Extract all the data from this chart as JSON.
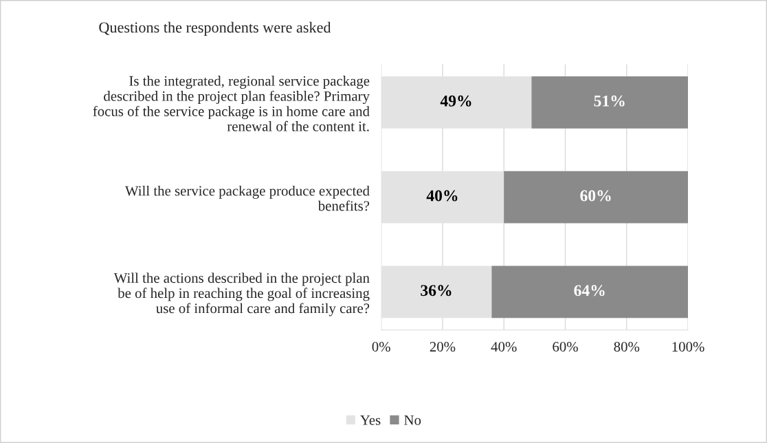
{
  "chart_data": {
    "type": "bar",
    "orientation": "horizontal",
    "stacked": true,
    "title": "Questions the respondents were asked",
    "categories": [
      "Is the integrated, regional service package described in the project plan feasible? Primary focus of the service package is in home care and renewal of the content it.",
      "Will the service package produce expected benefits?",
      "Will the actions described in the project plan be of help in reaching the goal of increasing use of informal care and family care?"
    ],
    "series": [
      {
        "name": "Yes",
        "color": "#e3e3e3",
        "values": [
          49,
          40,
          36
        ],
        "value_labels": [
          "49%",
          "40%",
          "36%"
        ]
      },
      {
        "name": "No",
        "color": "#8a8a8a",
        "values": [
          51,
          60,
          64
        ],
        "value_labels": [
          "51%",
          "60%",
          "64%"
        ]
      }
    ],
    "xlim": [
      0,
      100
    ],
    "xticks": [
      {
        "value": 0,
        "label": "0%"
      },
      {
        "value": 20,
        "label": "20%"
      },
      {
        "value": 40,
        "label": "40%"
      },
      {
        "value": 60,
        "label": "60%"
      },
      {
        "value": 80,
        "label": "80%"
      },
      {
        "value": 100,
        "label": "100%"
      }
    ],
    "grid": "x",
    "legend": "bottom"
  }
}
